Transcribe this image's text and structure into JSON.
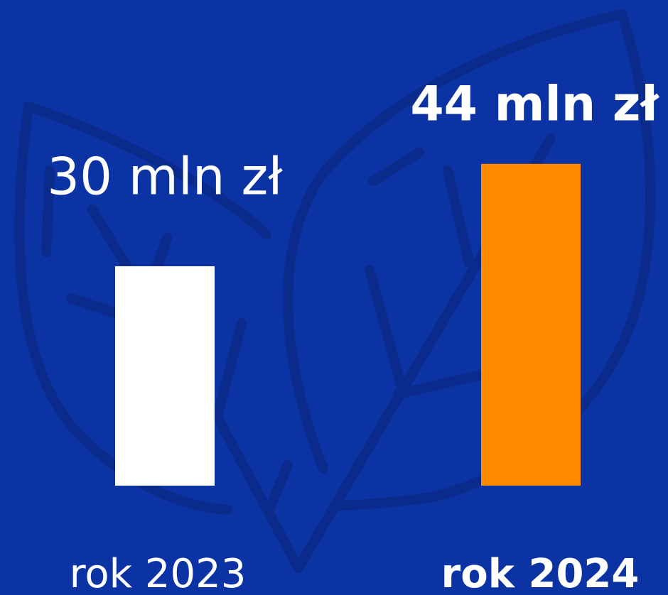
{
  "chart_data": {
    "type": "bar",
    "categories": [
      "rok 2023",
      "rok 2024"
    ],
    "values": [
      30,
      44
    ],
    "value_labels": [
      "30 mln zł",
      "44 mln zł"
    ],
    "colors": [
      "#ffffff",
      "#ff8a00"
    ]
  }
}
